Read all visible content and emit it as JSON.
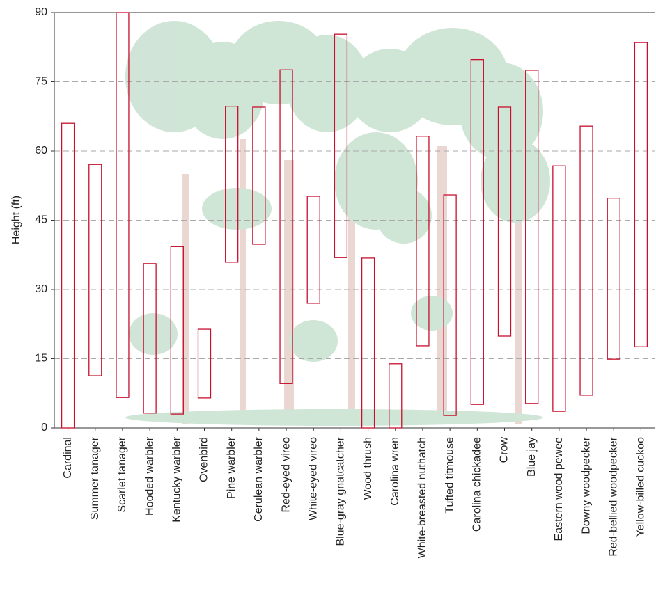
{
  "chart_data": {
    "type": "range",
    "y_label": "Height (ft)",
    "categories": [
      "Cardinal",
      "Summer tanager",
      "Scarlet tanager",
      "Hooded warbler",
      "Kentucky warbler",
      "Ovenbird",
      "Pine warbler",
      "Cerulean warbler",
      "Red-eyed vireo",
      "White-eyed vireo",
      "Blue-gray gnatcatcher",
      "Wood thrush",
      "Carolina wren",
      "White-breasted nuthatch",
      "Tufted titmouse",
      "Carolina chickadee",
      "Crow",
      "Blue jay",
      "Eastern wood pewee",
      "Downy woodpecker",
      "Red-bellied woodpecker",
      "Yellow-billed cuckoo"
    ],
    "low": [
      0,
      11.3,
      6.6,
      3.2,
      3.0,
      6.5,
      35.9,
      39.8,
      9.6,
      27.0,
      36.9,
      0,
      0,
      17.8,
      2.7,
      5.1,
      19.9,
      5.3,
      3.6,
      7.1,
      14.9,
      17.6
    ],
    "high": [
      66.0,
      57.1,
      90,
      35.6,
      39.3,
      21.4,
      69.7,
      69.5,
      77.6,
      50.2,
      85.3,
      36.8,
      13.9,
      63.2,
      50.5,
      79.8,
      69.5,
      77.5,
      56.8,
      65.4,
      49.8,
      83.5
    ],
    "color": "#c8102e",
    "ylim": [
      0,
      90
    ],
    "yticks": [
      0,
      15,
      30,
      45,
      60,
      75,
      90
    ],
    "grid": true
  }
}
